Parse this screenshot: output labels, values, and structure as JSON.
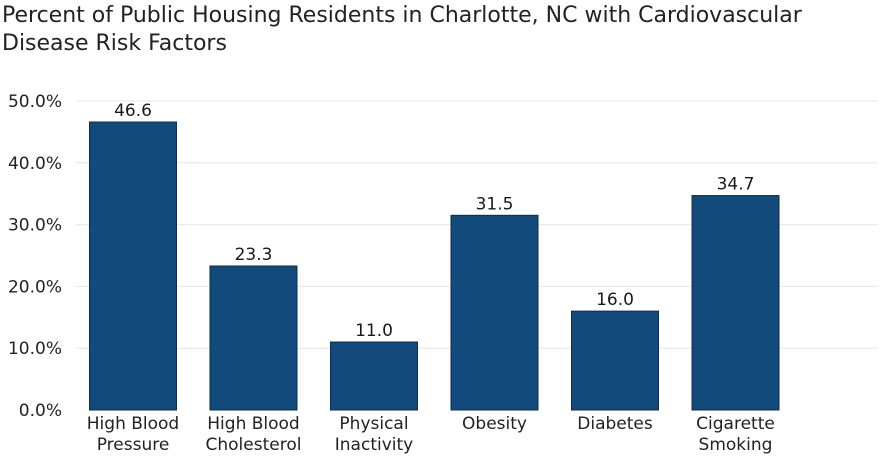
{
  "chart_data": {
    "type": "bar",
    "title": "Percent of Public Housing Residents in Charlotte, NC with Cardiovascular Disease Risk Factors",
    "xlabel": "",
    "ylabel": "",
    "categories": [
      [
        "High Blood",
        "Pressure"
      ],
      [
        "High Blood",
        "Cholesterol"
      ],
      [
        "Physical",
        "Inactivity"
      ],
      [
        "Obesity"
      ],
      [
        "Diabetes"
      ],
      [
        "Cigarette",
        "Smoking"
      ]
    ],
    "values": [
      46.6,
      23.3,
      11.0,
      31.5,
      16.0,
      34.7
    ],
    "value_labels": [
      "46.6",
      "23.3",
      "11.0",
      "31.5",
      "16.0",
      "34.7"
    ],
    "ylim": [
      0,
      50
    ],
    "yticks": [
      0,
      10,
      20,
      30,
      40,
      50
    ],
    "ytick_labels": [
      "0.0%",
      "10.0%",
      "20.0%",
      "30.0%",
      "40.0%",
      "50.0%"
    ],
    "grid": true,
    "legend": "none",
    "bar_color": "#134a7c",
    "bar_outline": "#0b2e50"
  }
}
